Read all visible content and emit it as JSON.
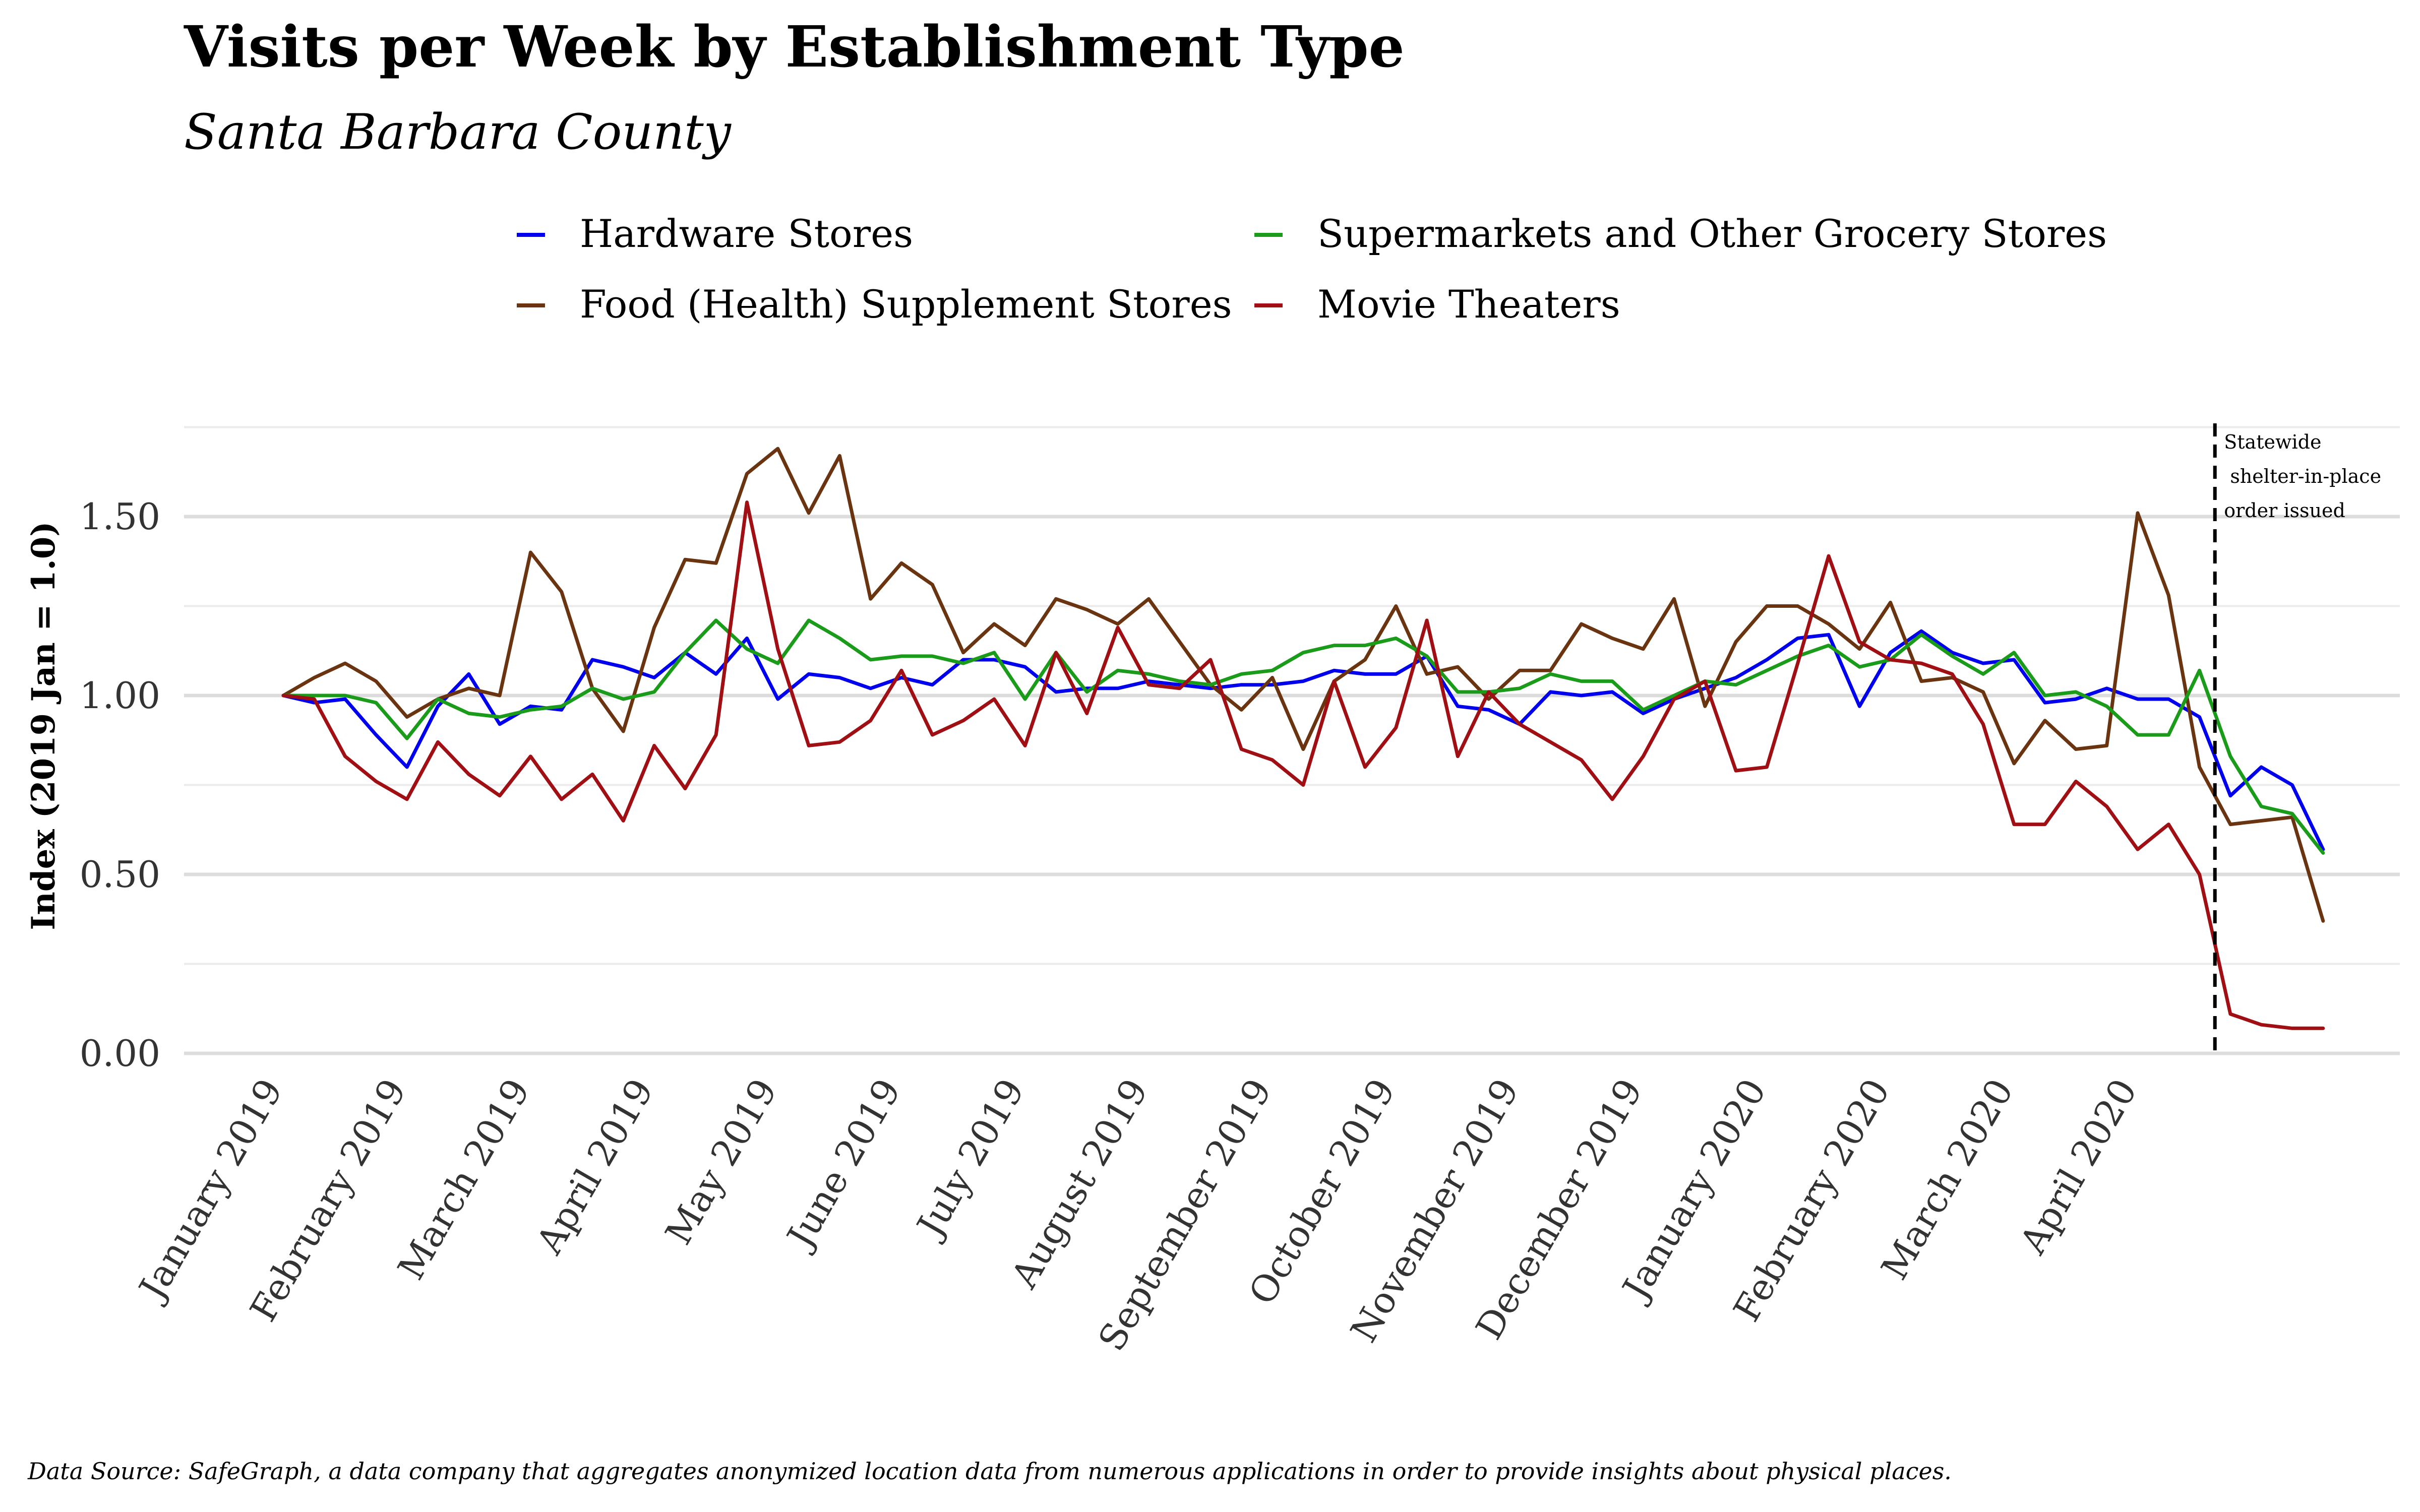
{
  "chart_data": {
    "type": "line",
    "title": "Visits per Week by Establishment Type",
    "subtitle": "Santa Barbara County",
    "ylabel": "Index (2019 Jan = 1.0)",
    "xlabel": "",
    "caption": "Data Source: SafeGraph, a data company that aggregates anonymized location data from numerous applications in order to provide insights about physical places.",
    "ylim": [
      0,
      1.75
    ],
    "y_ticks": [
      0.0,
      0.5,
      1.0,
      1.5
    ],
    "y_tick_labels": [
      "0.00",
      "0.50",
      "1.00",
      "1.50"
    ],
    "x_tick_labels": [
      "January 2019",
      "February 2019",
      "March 2019",
      "April 2019",
      "May 2019",
      "June 2019",
      "July 2019",
      "August 2019",
      "September 2019",
      "October 2019",
      "November 2019",
      "December 2019",
      "January 2020",
      "February 2020",
      "March 2020",
      "April 2020"
    ],
    "x_tick_weeks": [
      0,
      4,
      8,
      12,
      16,
      20,
      24,
      28,
      32,
      36,
      40,
      44,
      48,
      52,
      56,
      60
    ],
    "x_range_weeks": [
      -3,
      68
    ],
    "grid": true,
    "legend_position": "top",
    "legend_order": [
      0,
      2,
      1,
      3
    ],
    "series": [
      {
        "name": "Hardware Stores",
        "color": "#0000ee",
        "values": [
          1.0,
          0.98,
          0.99,
          0.89,
          0.8,
          0.97,
          1.06,
          0.92,
          0.97,
          0.96,
          1.1,
          1.08,
          1.05,
          1.12,
          1.06,
          1.16,
          0.99,
          1.06,
          1.05,
          1.02,
          1.05,
          1.03,
          1.1,
          1.1,
          1.08,
          1.01,
          1.02,
          1.02,
          1.04,
          1.03,
          1.02,
          1.03,
          1.03,
          1.04,
          1.07,
          1.06,
          1.06,
          1.11,
          0.97,
          0.96,
          0.92,
          1.01,
          1.0,
          1.01,
          0.95,
          0.99,
          1.02,
          1.05,
          1.1,
          1.16,
          1.17,
          0.97,
          1.12,
          1.18,
          1.12,
          1.09,
          1.1,
          0.98,
          0.99,
          1.02,
          0.99,
          0.99,
          0.94,
          0.72,
          0.8,
          0.75,
          0.57
        ]
      },
      {
        "name": "Food (Health) Supplement Stores",
        "color": "#6b3410",
        "values": [
          1.0,
          1.05,
          1.09,
          1.04,
          0.94,
          0.99,
          1.02,
          1.0,
          1.4,
          1.29,
          1.02,
          0.9,
          1.19,
          1.38,
          1.37,
          1.62,
          1.69,
          1.51,
          1.67,
          1.27,
          1.37,
          1.31,
          1.12,
          1.2,
          1.14,
          1.27,
          1.24,
          1.2,
          1.27,
          1.15,
          1.03,
          0.96,
          1.05,
          0.85,
          1.04,
          1.1,
          1.25,
          1.06,
          1.08,
          0.99,
          1.07,
          1.07,
          1.2,
          1.16,
          1.13,
          1.27,
          0.97,
          1.15,
          1.25,
          1.25,
          1.2,
          1.13,
          1.26,
          1.04,
          1.05,
          1.01,
          0.81,
          0.93,
          0.85,
          0.86,
          1.51,
          1.28,
          0.8,
          0.64,
          0.65,
          0.66,
          0.37
        ]
      },
      {
        "name": "Supermarkets and Other Grocery Stores",
        "color": "#1a9c1a",
        "values": [
          1.0,
          1.0,
          1.0,
          0.98,
          0.88,
          0.99,
          0.95,
          0.94,
          0.96,
          0.97,
          1.02,
          0.99,
          1.01,
          1.12,
          1.21,
          1.13,
          1.09,
          1.21,
          1.16,
          1.1,
          1.11,
          1.11,
          1.09,
          1.12,
          0.99,
          1.12,
          1.01,
          1.07,
          1.06,
          1.04,
          1.03,
          1.06,
          1.07,
          1.12,
          1.14,
          1.14,
          1.16,
          1.11,
          1.01,
          1.01,
          1.02,
          1.06,
          1.04,
          1.04,
          0.96,
          1.0,
          1.04,
          1.03,
          1.07,
          1.11,
          1.14,
          1.08,
          1.1,
          1.17,
          1.11,
          1.06,
          1.12,
          1.0,
          1.01,
          0.97,
          0.89,
          0.89,
          1.07,
          0.83,
          0.69,
          0.67,
          0.56
        ]
      },
      {
        "name": "Movie Theaters",
        "color": "#a00f14",
        "values": [
          1.0,
          0.99,
          0.83,
          0.76,
          0.71,
          0.87,
          0.78,
          0.72,
          0.83,
          0.71,
          0.78,
          0.65,
          0.86,
          0.74,
          0.89,
          1.54,
          1.13,
          0.86,
          0.87,
          0.93,
          1.07,
          0.89,
          0.93,
          0.99,
          0.86,
          1.12,
          0.95,
          1.19,
          1.03,
          1.02,
          1.1,
          0.85,
          0.82,
          0.75,
          1.04,
          0.8,
          0.91,
          1.21,
          0.83,
          1.01,
          0.92,
          0.87,
          0.82,
          0.71,
          0.83,
          0.99,
          1.04,
          0.79,
          0.8,
          1.09,
          1.39,
          1.15,
          1.1,
          1.09,
          1.06,
          0.92,
          0.64,
          0.64,
          0.76,
          0.69,
          0.57,
          0.64,
          0.5,
          0.11,
          0.08,
          0.07,
          0.07
        ]
      }
    ],
    "annotation": {
      "week": 62.5,
      "lines": [
        "Statewide",
        " shelter-in-place",
        "order issued"
      ]
    }
  }
}
